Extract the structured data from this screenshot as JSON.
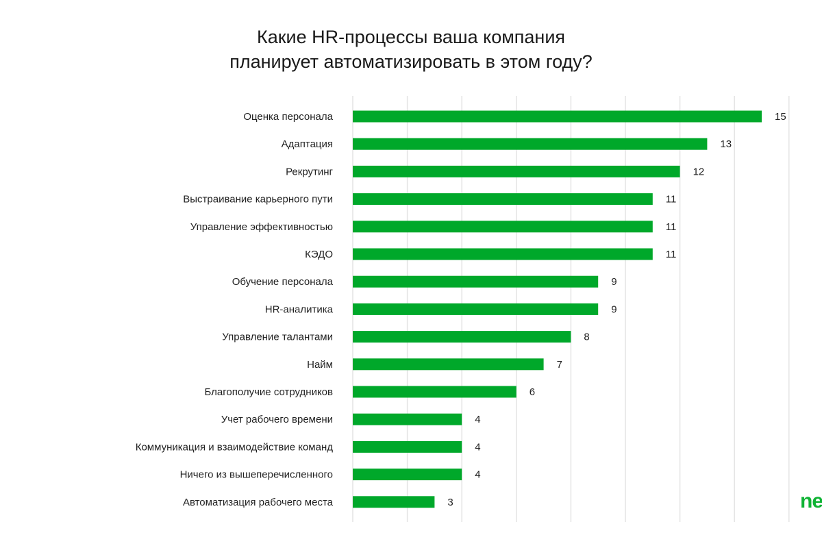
{
  "chart_data": {
    "type": "bar",
    "orientation": "horizontal",
    "title": [
      "Какие HR-процессы ваша компания",
      "планирует автоматизировать в этом году?"
    ],
    "xlabel": "",
    "ylabel": "",
    "xlim": [
      0,
      16
    ],
    "grid_step": 2,
    "grid": true,
    "bar_color": "#00a82a",
    "categories": [
      "Оценка персонала",
      "Адаптация",
      "Рекрутинг",
      "Выстраивание карьерного пути",
      "Управление эффективностью",
      "КЭДО",
      "Обучение персонала",
      "HR-аналитика",
      "Управление талантами",
      "Найм",
      "Благополучие сотрудников",
      "Учет рабочего времени",
      "Коммуникация и взаимодействие команд",
      "Ничего из вышеперечисленного",
      "Автоматизация рабочего места"
    ],
    "values": [
      15,
      13,
      12,
      11,
      11,
      11,
      9,
      9,
      8,
      7,
      6,
      4,
      4,
      4,
      3
    ]
  },
  "logo": {
    "text": "ne",
    "color": "#0fb334"
  }
}
